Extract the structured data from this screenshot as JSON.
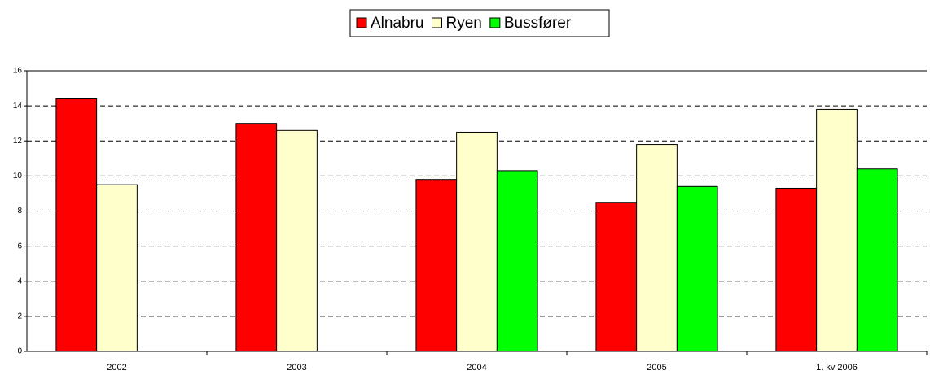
{
  "chart_data": {
    "type": "bar",
    "categories": [
      "2002",
      "2003",
      "2004",
      "2005",
      "1. kv 2006"
    ],
    "series": [
      {
        "name": "Alnabru",
        "color": "#ff0000",
        "values": [
          14.4,
          13.0,
          9.8,
          8.5,
          9.3
        ]
      },
      {
        "name": "Ryen",
        "color": "#ffffcc",
        "values": [
          9.5,
          12.6,
          12.5,
          11.8,
          13.8
        ]
      },
      {
        "name": "Bussfører",
        "color": "#00ff00",
        "values": [
          null,
          null,
          10.3,
          9.4,
          10.4
        ]
      }
    ],
    "ylim": [
      0,
      16
    ],
    "yticks": [
      0,
      2,
      4,
      6,
      8,
      10,
      12,
      14,
      16
    ],
    "grid": true,
    "legend": "top"
  }
}
